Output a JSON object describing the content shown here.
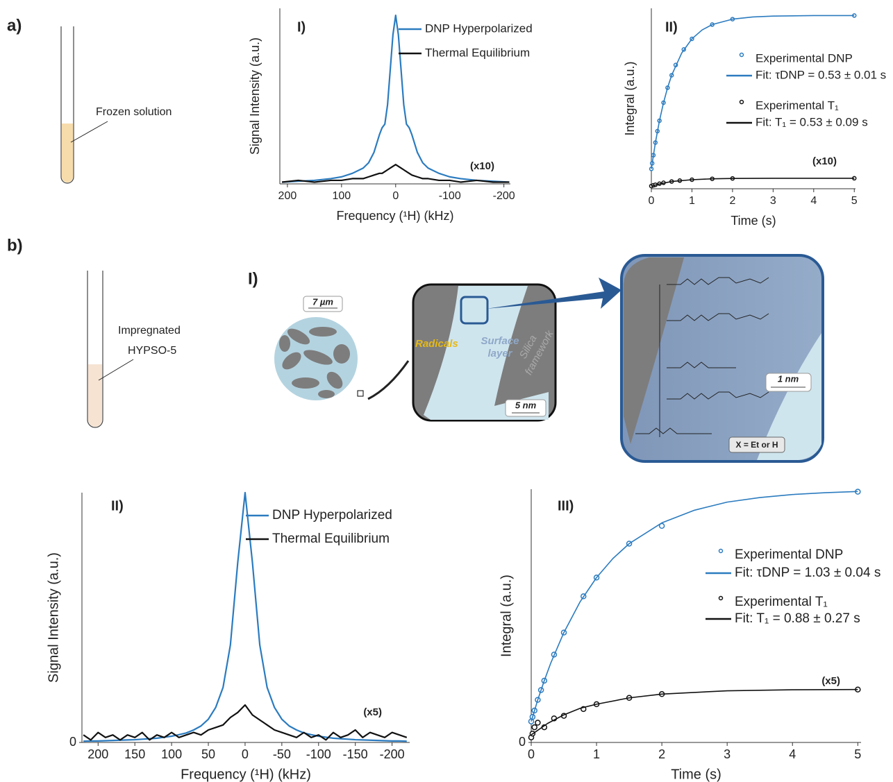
{
  "figure": {
    "panel_labels": [
      "a)",
      "b)"
    ],
    "tube_a_label": "Frozen solution",
    "tube_b_label": [
      "Impregnated",
      "HYPSO-5"
    ],
    "schematic": {
      "panel": "I)",
      "scale_bars": [
        "7 µm",
        "5 nm",
        "1 nm"
      ],
      "radicals": "Radicals",
      "surface_layer": [
        "Surface",
        "layer"
      ],
      "silica_framework": [
        "Silica",
        "framework"
      ],
      "note": "X = Et or H"
    }
  },
  "chart_data": [
    {
      "type": "line",
      "panel": "I)",
      "xlabel": "Frequency (¹H) (kHz)",
      "ylabel": "Signal Intensity (a.u.)",
      "annotation": "(x10)",
      "legend": "upper right",
      "x": [
        210,
        180,
        150,
        120,
        100,
        80,
        60,
        50,
        40,
        30,
        25,
        20,
        15,
        10,
        5,
        0,
        -5,
        -10,
        -15,
        -20,
        -25,
        -30,
        -40,
        -50,
        -60,
        -80,
        -100,
        -120,
        -150,
        -180,
        -210
      ],
      "xlim": [
        214,
        -212
      ],
      "xticks": [
        200,
        100,
        0,
        -100,
        -200
      ],
      "ylim": [
        0,
        100
      ],
      "series": [
        {
          "name": "DNP Hyperpolarized",
          "color": "#2b7bbf",
          "values": [
            1,
            1.5,
            2,
            3,
            4,
            6,
            9,
            12,
            18,
            28,
            32,
            34,
            45,
            65,
            85,
            96,
            85,
            65,
            45,
            34,
            32,
            28,
            18,
            12,
            9,
            6,
            4,
            3,
            2,
            1.5,
            1
          ]
        },
        {
          "name": "Thermal Equilibrium",
          "color": "#111111",
          "values": [
            1,
            2,
            1,
            2,
            2,
            3,
            3,
            4,
            5,
            6,
            6,
            7,
            8,
            9,
            10,
            11,
            10,
            9,
            8,
            7,
            6,
            5,
            4,
            3,
            3,
            2,
            2,
            1,
            2,
            1,
            1
          ]
        }
      ]
    },
    {
      "type": "scatter",
      "panel": "II)",
      "xlabel": "Time (s)",
      "ylabel": "Integral (a.u.)",
      "annotation": "(x10)",
      "legend": "upper right",
      "xlim": [
        0,
        5.03
      ],
      "xticks": [
        0,
        1,
        2,
        3,
        4,
        5
      ],
      "ylim": [
        0,
        100
      ],
      "series": [
        {
          "name": "Experimental DNP",
          "mode": "markers",
          "color": "#2b7bbf",
          "x": [
            0,
            0.02,
            0.05,
            0.1,
            0.15,
            0.2,
            0.3,
            0.4,
            0.5,
            0.6,
            0.8,
            1,
            1.5,
            2,
            5
          ],
          "values": [
            11,
            14.1,
            18.6,
            25.6,
            31.9,
            37.7,
            47.7,
            56,
            62.9,
            68.6,
            77.2,
            83.1,
            91,
            94,
            96
          ]
        },
        {
          "name": "Fit: τDNP = 0.53 ± 0.01 s",
          "mode": "line",
          "color": "#2b7bbf",
          "x": [
            0,
            0.1,
            0.2,
            0.3,
            0.4,
            0.5,
            0.75,
            1,
            1.25,
            1.5,
            2,
            2.5,
            3,
            4,
            5
          ],
          "values": [
            11,
            25.6,
            37.7,
            47.7,
            56,
            62.9,
            75.3,
            83.1,
            88,
            91,
            94,
            95.2,
            95.7,
            96,
            96
          ]
        },
        {
          "name": "Experimental T₁",
          "mode": "markers",
          "color": "#111111",
          "x": [
            0,
            0.05,
            0.1,
            0.2,
            0.3,
            0.5,
            0.7,
            1,
            1.5,
            2,
            5
          ],
          "values": [
            1.5,
            1.9,
            2.2,
            2.8,
            3.3,
            4,
            4.5,
            5,
            5.5,
            5.7,
            5.8
          ]
        },
        {
          "name": "Fit: T₁ = 0.53 ± 0.09 s",
          "mode": "line",
          "color": "#111111",
          "x": [
            0,
            0.25,
            0.5,
            1,
            1.5,
            2,
            3,
            5
          ],
          "values": [
            1.5,
            2.9,
            4,
            5,
            5.5,
            5.7,
            5.8,
            5.8
          ]
        }
      ]
    },
    {
      "type": "line",
      "panel": "II)",
      "xlabel": "Frequency (¹H) (kHz)",
      "ylabel": "Signal Intensity (a.u.)",
      "annotation": "(x5)",
      "legend": "upper right",
      "x": [
        220,
        210,
        200,
        190,
        180,
        170,
        160,
        150,
        140,
        130,
        120,
        110,
        100,
        90,
        80,
        70,
        60,
        50,
        40,
        30,
        20,
        10,
        0,
        -10,
        -20,
        -30,
        -40,
        -50,
        -60,
        -70,
        -80,
        -90,
        -100,
        -110,
        -120,
        -130,
        -140,
        -150,
        -160,
        -170,
        -180,
        -190,
        -200,
        -210,
        -220
      ],
      "xlim": [
        222,
        -224
      ],
      "xticks": [
        200,
        150,
        100,
        50,
        0,
        -50,
        -100,
        -150,
        -200
      ],
      "ylim": [
        0,
        100
      ],
      "yticks": [
        0
      ],
      "series": [
        {
          "name": "DNP Hyperpolarized",
          "color": "#2b7bbf",
          "values": [
            0.5,
            0.6,
            0.6,
            0.7,
            0.8,
            0.9,
            1,
            1.1,
            1.3,
            1.5,
            1.7,
            2.1,
            2.5,
            3.1,
            3.8,
            5,
            6.6,
            9.3,
            14,
            22,
            39,
            72,
            100,
            72,
            39,
            22,
            14,
            9.3,
            6.6,
            5,
            3.8,
            3.1,
            2.5,
            2.1,
            1.7,
            1.5,
            1.3,
            1.1,
            1,
            0.9,
            0.8,
            0.7,
            0.6,
            0.6,
            0.5
          ]
        },
        {
          "name": "Thermal Equilibrium",
          "color": "#111111",
          "values": [
            3,
            1,
            4,
            2,
            3,
            1,
            3,
            2,
            4,
            1,
            3,
            2,
            4,
            2,
            3,
            4,
            3,
            5,
            6,
            7,
            10,
            12,
            15,
            11,
            9,
            7,
            5,
            4,
            3,
            2,
            4,
            2,
            3,
            1,
            4,
            2,
            3,
            5,
            2,
            4,
            3,
            2,
            4,
            3,
            2
          ]
        }
      ]
    },
    {
      "type": "scatter",
      "panel": "III)",
      "xlabel": "Time (s)",
      "ylabel": "Integral (a.u.)",
      "annotation": "(x5)",
      "legend": "upper right",
      "xlim": [
        0,
        5.05
      ],
      "xticks": [
        0,
        1,
        2,
        3,
        4,
        5
      ],
      "ylim": [
        0,
        100
      ],
      "yticks": [
        0
      ],
      "series": [
        {
          "name": "Experimental DNP",
          "mode": "markers",
          "color": "#2b7bbf",
          "x": [
            0,
            0.02,
            0.05,
            0.1,
            0.15,
            0.2,
            0.35,
            0.5,
            0.8,
            1,
            1.5,
            2,
            5
          ],
          "values": [
            8.3,
            10.1,
            12.6,
            16.8,
            20.7,
            24.4,
            34.7,
            43.4,
            57.7,
            65.1,
            78.5,
            85.5,
            99
          ]
        },
        {
          "name": "Fit: τDNP = 1.03 ± 0.04 s",
          "mode": "line",
          "color": "#2b7bbf",
          "x": [
            0,
            0.1,
            0.2,
            0.3,
            0.5,
            0.75,
            1,
            1.25,
            1.5,
            2,
            2.5,
            3,
            3.5,
            4,
            4.5,
            5
          ],
          "values": [
            8.3,
            16.8,
            24.4,
            31.4,
            43.4,
            55.6,
            65.1,
            72.6,
            78.5,
            86.7,
            91.7,
            94.9,
            96.7,
            97.9,
            98.6,
            99.1
          ]
        },
        {
          "name": "Experimental T₁",
          "mode": "markers",
          "color": "#111111",
          "x": [
            0,
            0.02,
            0.05,
            0.1,
            0.2,
            0.35,
            0.5,
            0.8,
            1,
            1.5,
            2,
            5
          ],
          "values": [
            2,
            3.5,
            6,
            7.8,
            6,
            9.5,
            10.5,
            13.2,
            15.1,
            17.6,
            19.1,
            20.9
          ]
        },
        {
          "name": "Fit: T₁ = 0.88 ± 0.27 s",
          "mode": "line",
          "color": "#111111",
          "x": [
            0,
            0.25,
            0.5,
            0.75,
            1,
            1.5,
            2,
            3,
            4,
            5
          ],
          "values": [
            3,
            7.5,
            10.9,
            13.5,
            15.1,
            17.6,
            19.1,
            20.4,
            20.8,
            20.9
          ]
        }
      ]
    }
  ]
}
